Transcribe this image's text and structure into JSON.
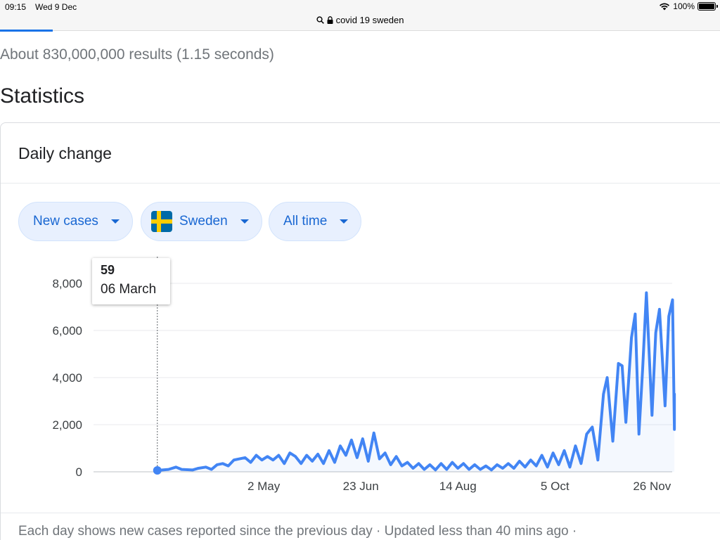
{
  "status_bar": {
    "time": "09:15",
    "date": "Wed 9 Dec",
    "battery": "100%",
    "battery_level": 1.0
  },
  "url_bar": {
    "query": "covid 19 sweden",
    "icons": [
      "search-icon",
      "lock-icon"
    ]
  },
  "results_count": "About 830,000,000 results (1.15 seconds)",
  "heading": "Statistics",
  "card": {
    "title": "Daily change",
    "chips": [
      {
        "label": "New cases"
      },
      {
        "label": "Sweden",
        "icon": "sweden-flag-icon"
      },
      {
        "label": "All time"
      }
    ],
    "tooltip": {
      "value": "59",
      "date": "06 March"
    },
    "footer": "Each day shows new cases reported since the previous day · Updated less than 40 mins ago  ·"
  },
  "colors": {
    "accent": "#1a73e8",
    "chip_bg": "#e8f0fe",
    "chip_text": "#1967d2",
    "line": "#4285f4"
  },
  "chart_data": {
    "type": "line",
    "title": "",
    "xlabel": "",
    "ylabel": "",
    "x_start": "2020-02-01",
    "x_end": "2020-12-07",
    "xticks": [
      {
        "label": "2 May",
        "date": "2020-05-02"
      },
      {
        "label": "23 Jun",
        "date": "2020-06-23"
      },
      {
        "label": "14 Aug",
        "date": "2020-08-14"
      },
      {
        "label": "5 Oct",
        "date": "2020-10-05"
      },
      {
        "label": "26 Nov",
        "date": "2020-11-26"
      }
    ],
    "ylim": [
      0,
      8000
    ],
    "yticks": [
      {
        "label": "0",
        "value": 0
      },
      {
        "label": "2,000",
        "value": 2000
      },
      {
        "label": "4,000",
        "value": 4000
      },
      {
        "label": "6,000",
        "value": 6000
      },
      {
        "label": "8,000",
        "value": 8000
      }
    ],
    "grid": true,
    "highlight_point": {
      "date": "2020-03-06",
      "value": 59
    },
    "series": [
      {
        "points": [
          [
            "2020-03-06",
            59
          ],
          [
            "2020-03-12",
            100
          ],
          [
            "2020-03-16",
            200
          ],
          [
            "2020-03-19",
            100
          ],
          [
            "2020-03-25",
            80
          ],
          [
            "2020-03-28",
            150
          ],
          [
            "2020-04-01",
            200
          ],
          [
            "2020-04-04",
            100
          ],
          [
            "2020-04-07",
            300
          ],
          [
            "2020-04-10",
            350
          ],
          [
            "2020-04-13",
            250
          ],
          [
            "2020-04-16",
            500
          ],
          [
            "2020-04-19",
            550
          ],
          [
            "2020-04-22",
            600
          ],
          [
            "2020-04-25",
            400
          ],
          [
            "2020-04-28",
            700
          ],
          [
            "2020-05-01",
            500
          ],
          [
            "2020-05-04",
            650
          ],
          [
            "2020-05-07",
            500
          ],
          [
            "2020-05-10",
            700
          ],
          [
            "2020-05-13",
            350
          ],
          [
            "2020-05-16",
            800
          ],
          [
            "2020-05-19",
            650
          ],
          [
            "2020-05-22",
            350
          ],
          [
            "2020-05-25",
            700
          ],
          [
            "2020-05-28",
            450
          ],
          [
            "2020-05-31",
            750
          ],
          [
            "2020-06-03",
            350
          ],
          [
            "2020-06-06",
            900
          ],
          [
            "2020-06-09",
            400
          ],
          [
            "2020-06-12",
            1100
          ],
          [
            "2020-06-15",
            700
          ],
          [
            "2020-06-18",
            1350
          ],
          [
            "2020-06-21",
            600
          ],
          [
            "2020-06-24",
            1400
          ],
          [
            "2020-06-27",
            450
          ],
          [
            "2020-06-30",
            1650
          ],
          [
            "2020-07-03",
            550
          ],
          [
            "2020-07-06",
            800
          ],
          [
            "2020-07-09",
            300
          ],
          [
            "2020-07-12",
            650
          ],
          [
            "2020-07-15",
            250
          ],
          [
            "2020-07-18",
            400
          ],
          [
            "2020-07-21",
            150
          ],
          [
            "2020-07-24",
            350
          ],
          [
            "2020-07-27",
            100
          ],
          [
            "2020-07-30",
            300
          ],
          [
            "2020-08-02",
            80
          ],
          [
            "2020-08-05",
            350
          ],
          [
            "2020-08-08",
            100
          ],
          [
            "2020-08-11",
            400
          ],
          [
            "2020-08-14",
            150
          ],
          [
            "2020-08-17",
            350
          ],
          [
            "2020-08-20",
            100
          ],
          [
            "2020-08-23",
            300
          ],
          [
            "2020-08-26",
            100
          ],
          [
            "2020-08-29",
            250
          ],
          [
            "2020-09-01",
            80
          ],
          [
            "2020-09-04",
            300
          ],
          [
            "2020-09-07",
            150
          ],
          [
            "2020-09-10",
            350
          ],
          [
            "2020-09-13",
            150
          ],
          [
            "2020-09-16",
            450
          ],
          [
            "2020-09-19",
            200
          ],
          [
            "2020-09-22",
            500
          ],
          [
            "2020-09-25",
            250
          ],
          [
            "2020-09-28",
            700
          ],
          [
            "2020-10-01",
            200
          ],
          [
            "2020-10-04",
            800
          ],
          [
            "2020-10-07",
            300
          ],
          [
            "2020-10-10",
            900
          ],
          [
            "2020-10-13",
            200
          ],
          [
            "2020-10-16",
            1100
          ],
          [
            "2020-10-19",
            350
          ],
          [
            "2020-10-22",
            1600
          ],
          [
            "2020-10-25",
            1900
          ],
          [
            "2020-10-28",
            500
          ],
          [
            "2020-10-31",
            3300
          ],
          [
            "2020-11-02",
            4000
          ],
          [
            "2020-11-05",
            1300
          ],
          [
            "2020-11-08",
            4600
          ],
          [
            "2020-11-10",
            4500
          ],
          [
            "2020-11-12",
            2100
          ],
          [
            "2020-11-15",
            5700
          ],
          [
            "2020-11-17",
            6700
          ],
          [
            "2020-11-19",
            1600
          ],
          [
            "2020-11-21",
            4400
          ],
          [
            "2020-11-23",
            7600
          ],
          [
            "2020-11-26",
            2400
          ],
          [
            "2020-11-28",
            5900
          ],
          [
            "2020-11-30",
            6900
          ],
          [
            "2020-12-03",
            2800
          ],
          [
            "2020-12-05",
            6600
          ],
          [
            "2020-12-07",
            7300
          ],
          [
            "2020-12-08",
            1800
          ],
          [
            "2020-12-08",
            3300
          ]
        ]
      }
    ]
  }
}
